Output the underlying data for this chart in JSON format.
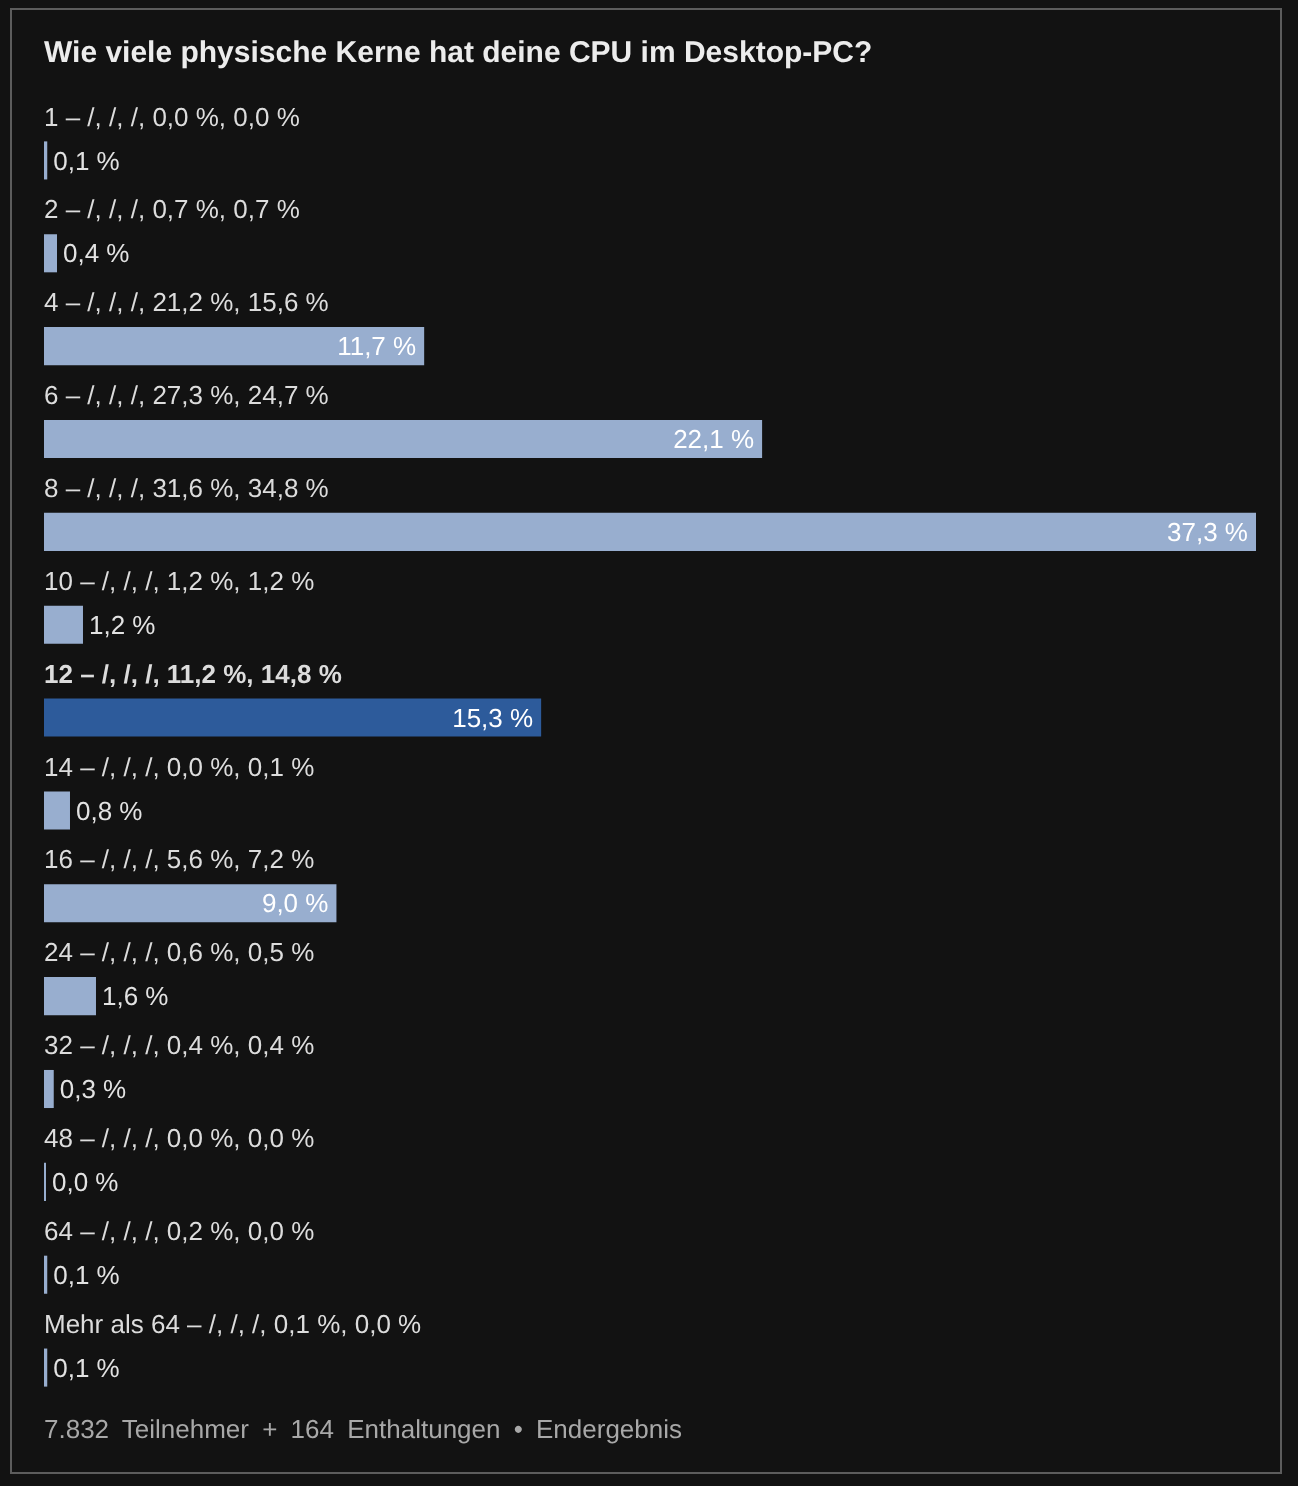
{
  "chart_data": {
    "type": "bar",
    "orientation": "horizontal",
    "title": "Wie viele physische Kerne hat deine CPU im Desktop-PC?",
    "categories": [
      "1 – /, /, /, 0,0 %, 0,0 %",
      "2 – /, /, /, 0,7 %, 0,7 %",
      "4 – /, /, /, 21,2 %, 15,6 %",
      "6 – /, /, /, 27,3 %, 24,7 %",
      "8 – /, /, /, 31,6 %, 34,8 %",
      "10 – /, /, /, 1,2 %, 1,2 %",
      "12 – /, /, /, 11,2 %, 14,8 %",
      "14 – /, /, /, 0,0 %, 0,1 %",
      "16 – /, /, /, 5,6 %, 7,2 %",
      "24 – /, /, /, 0,6 %, 0,5 %",
      "32 – /, /, /, 0,4 %, 0,4 %",
      "48 – /, /, /, 0,0 %, 0,0 %",
      "64 – /, /, /, 0,2 %, 0,0 %",
      "Mehr als 64 – /, /, /, 0,1 %, 0,0 %"
    ],
    "values": [
      0.1,
      0.4,
      11.7,
      22.1,
      37.3,
      1.2,
      15.3,
      0.8,
      9.0,
      1.6,
      0.3,
      0.0,
      0.1,
      0.1
    ],
    "value_labels": [
      "0,1 %",
      "0,4 %",
      "11,7 %",
      "22,1 %",
      "37,3 %",
      "1,2 %",
      "15,3 %",
      "0,8 %",
      "9,0 %",
      "1,6 %",
      "0,3 %",
      "0,0 %",
      "0,1 %",
      "0,1 %"
    ],
    "colors": [
      "#98aecf",
      "#98aecf",
      "#98aecf",
      "#98aecf",
      "#98aecf",
      "#98aecf",
      "#2d5b9b",
      "#98aecf",
      "#98aecf",
      "#98aecf",
      "#98aecf",
      "#98aecf",
      "#98aecf",
      "#98aecf"
    ],
    "annotations": [
      "7.832 Teilnehmer + 164 Enthaltungen • Endergebnis"
    ]
  }
}
